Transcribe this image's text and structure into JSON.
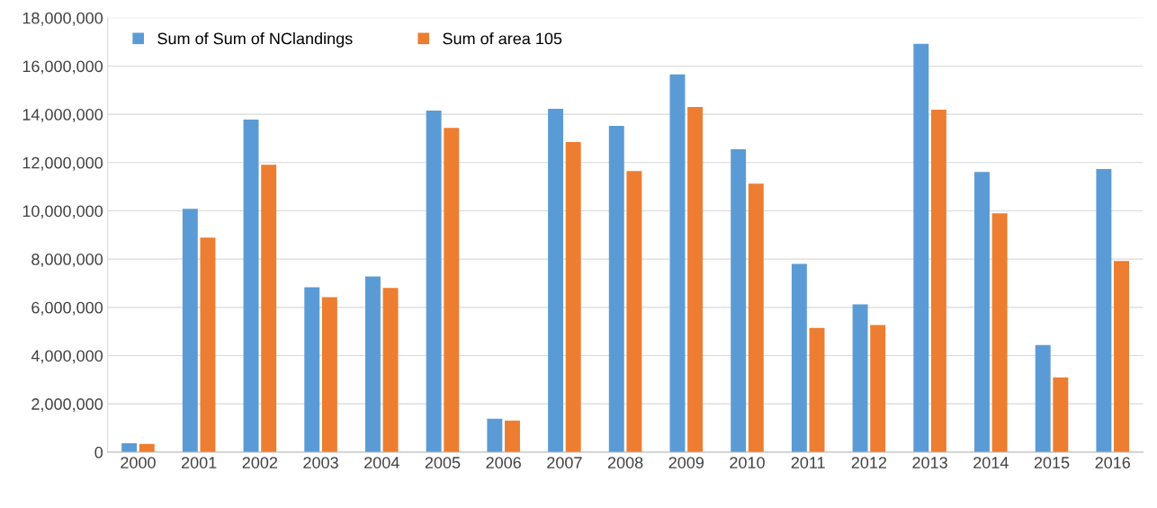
{
  "chart_data": {
    "type": "bar",
    "categories": [
      "2000",
      "2001",
      "2002",
      "2003",
      "2004",
      "2005",
      "2006",
      "2007",
      "2008",
      "2009",
      "2010",
      "2011",
      "2012",
      "2013",
      "2014",
      "2015",
      "2016"
    ],
    "series": [
      {
        "name": "Sum of Sum of NClandings",
        "color": "#5b9bd5",
        "values": [
          370000,
          10080000,
          13780000,
          6830000,
          7280000,
          14150000,
          1380000,
          14230000,
          13520000,
          15650000,
          12550000,
          7800000,
          6120000,
          16920000,
          11610000,
          4440000,
          11730000
        ]
      },
      {
        "name": "Sum of area 105",
        "color": "#ed7d31",
        "values": [
          340000,
          8890000,
          11910000,
          6420000,
          6800000,
          13440000,
          1310000,
          12850000,
          11650000,
          14300000,
          11130000,
          5150000,
          5270000,
          14190000,
          9900000,
          3100000,
          7920000
        ]
      }
    ],
    "ylim": [
      0,
      18000000
    ],
    "yticks": [
      {
        "value": 0,
        "label": "0"
      },
      {
        "value": 2000000,
        "label": "2,000,000"
      },
      {
        "value": 4000000,
        "label": "4,000,000"
      },
      {
        "value": 6000000,
        "label": "6,000,000"
      },
      {
        "value": 8000000,
        "label": "8,000,000"
      },
      {
        "value": 10000000,
        "label": "10,000,000"
      },
      {
        "value": 12000000,
        "label": "12,000,000"
      },
      {
        "value": 14000000,
        "label": "14,000,000"
      },
      {
        "value": 16000000,
        "label": "16,000,000"
      },
      {
        "value": 18000000,
        "label": "18,000,000"
      }
    ],
    "grid": "y",
    "legend": "top left"
  }
}
